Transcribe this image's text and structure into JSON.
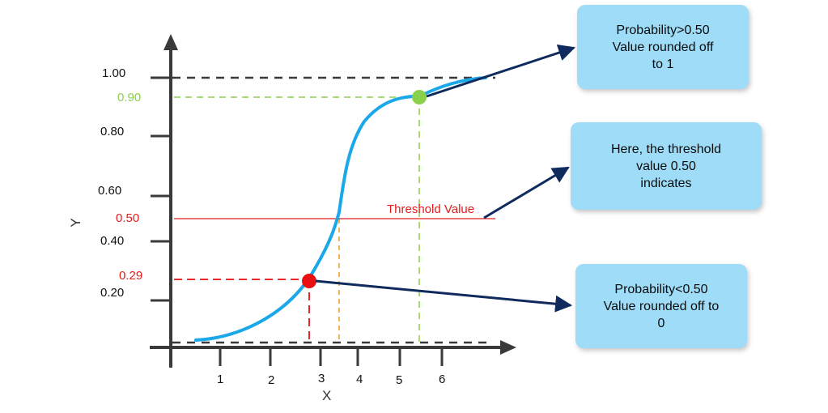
{
  "colors": {
    "axis": "#3a3a3a",
    "curve": "#1ba8e8",
    "high_marker": "#8bd04b",
    "low_marker": "#e81010",
    "threshold": "#e41b1b",
    "threshold_drop": "#f39a1f",
    "arrow": "#0f2a5c",
    "callout_bg": "#9edcf8"
  },
  "axes": {
    "x_title": "X",
    "y_title": "Y",
    "x_ticks": [
      "1",
      "2",
      "3",
      "4",
      "5",
      "6"
    ],
    "y_ticks": [
      "1.00",
      "0.80",
      "0.60",
      "0.40",
      "0.20"
    ],
    "y_markers": {
      "high": "0.90",
      "threshold": "0.50",
      "low": "0.29"
    }
  },
  "threshold_label": "Threshold Value",
  "callouts": {
    "high": [
      "Probability>0.50",
      "Value rounded off",
      "to 1"
    ],
    "threshold": [
      "Here, the threshold",
      "value 0.50",
      "indicates"
    ],
    "low": [
      "Probability<0.50",
      "Value rounded off to",
      "0"
    ]
  }
}
